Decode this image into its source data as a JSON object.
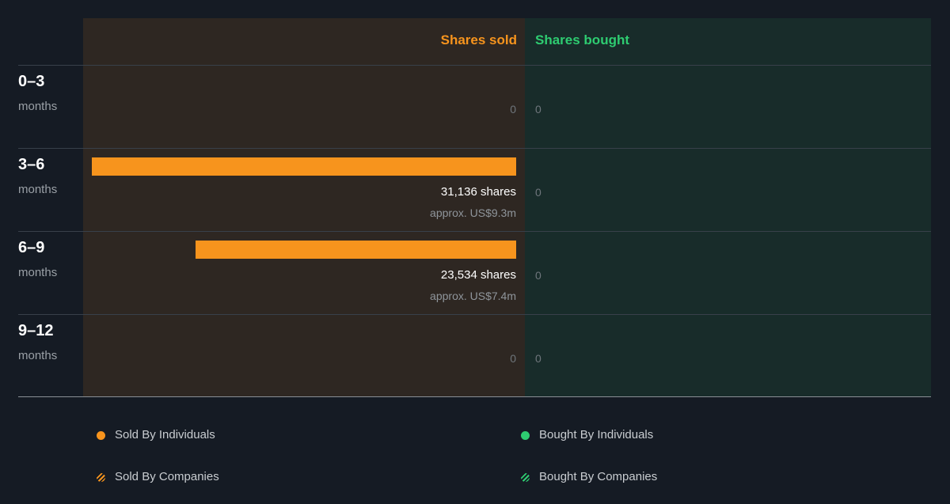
{
  "colors": {
    "sold": "#f7941d",
    "bought": "#2ecc71"
  },
  "header": {
    "sold_title": "Shares sold",
    "bought_title": "Shares bought"
  },
  "chart_data": {
    "type": "bar",
    "categories": [
      "0–3 months",
      "3–6 months",
      "6–9 months",
      "9–12 months"
    ],
    "periods": [
      {
        "num": "0–3",
        "unit": "months",
        "sold_shares": 0,
        "sold_label": "0",
        "sold_approx": "",
        "bought_label": "0"
      },
      {
        "num": "3–6",
        "unit": "months",
        "sold_shares": 31136,
        "sold_label": "31,136 shares",
        "sold_approx": "approx. US$9.3m",
        "bought_label": "0"
      },
      {
        "num": "6–9",
        "unit": "months",
        "sold_shares": 23534,
        "sold_label": "23,534 shares",
        "sold_approx": "approx. US$7.4m",
        "bought_label": "0"
      },
      {
        "num": "9–12",
        "unit": "months",
        "sold_shares": 0,
        "sold_label": "0",
        "sold_approx": "",
        "bought_label": "0"
      }
    ],
    "series": [
      {
        "name": "Shares sold",
        "values": [
          0,
          31136,
          23534,
          0
        ]
      },
      {
        "name": "Shares bought",
        "values": [
          0,
          0,
          0,
          0
        ]
      }
    ],
    "xmax": 31136
  },
  "legend": {
    "sold_individuals": "Sold By Individuals",
    "bought_individuals": "Bought By Individuals",
    "sold_companies": "Sold By Companies",
    "bought_companies": "Bought By Companies"
  }
}
